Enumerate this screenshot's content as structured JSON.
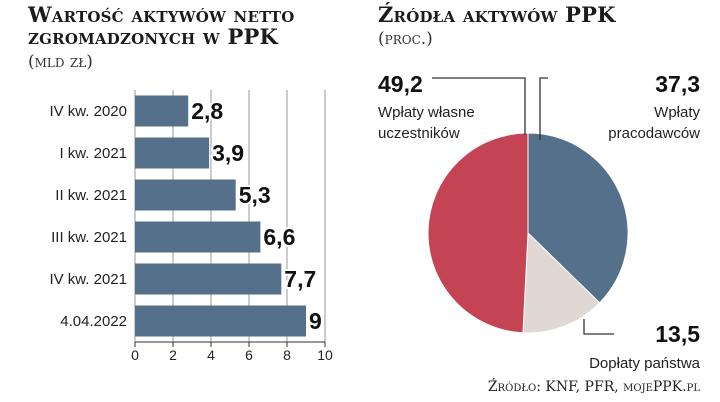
{
  "bar_chart": {
    "title": "Wartość aktywów netto zgromadzonych w PPK",
    "unit": "(mld zł)"
  },
  "pie_chart": {
    "title": "Źródła aktywów PPK",
    "unit": "(proc.)"
  },
  "source": "Źródło: KNF, PFR, mojePPK.pl",
  "colors": {
    "bar": "#54708a",
    "pie_red": "#c54454",
    "pie_blue": "#54708a",
    "pie_gray": "#e0d8d4"
  },
  "chart_data": [
    {
      "type": "bar",
      "orientation": "horizontal",
      "title": "Wartość aktywów netto zgromadzonych w PPK",
      "categories": [
        "IV kw. 2020",
        "I kw. 2021",
        "II kw. 2021",
        "III kw. 2021",
        "IV kw. 2021",
        "4.04.2022"
      ],
      "values": [
        2.8,
        3.9,
        5.3,
        6.6,
        7.7,
        9
      ],
      "value_labels": [
        "2,8",
        "3,9",
        "5,3",
        "6,6",
        "7,7",
        "9"
      ],
      "xlim": [
        0,
        10
      ],
      "xticks": [
        "0",
        "2",
        "4",
        "6",
        "8",
        "10"
      ],
      "grid": true
    },
    {
      "type": "pie",
      "title": "Źródła aktywów PPK",
      "slices": [
        {
          "value": 37.3,
          "value_label": "37,3",
          "label_lines": [
            "Wpłaty",
            "pracodawców"
          ]
        },
        {
          "value": 13.5,
          "value_label": "13,5",
          "label_lines": [
            "Dopłaty państwa"
          ]
        },
        {
          "value": 49.2,
          "value_label": "49,2",
          "label_lines": [
            "Wpłaty własne",
            "uczestników"
          ]
        }
      ]
    }
  ]
}
